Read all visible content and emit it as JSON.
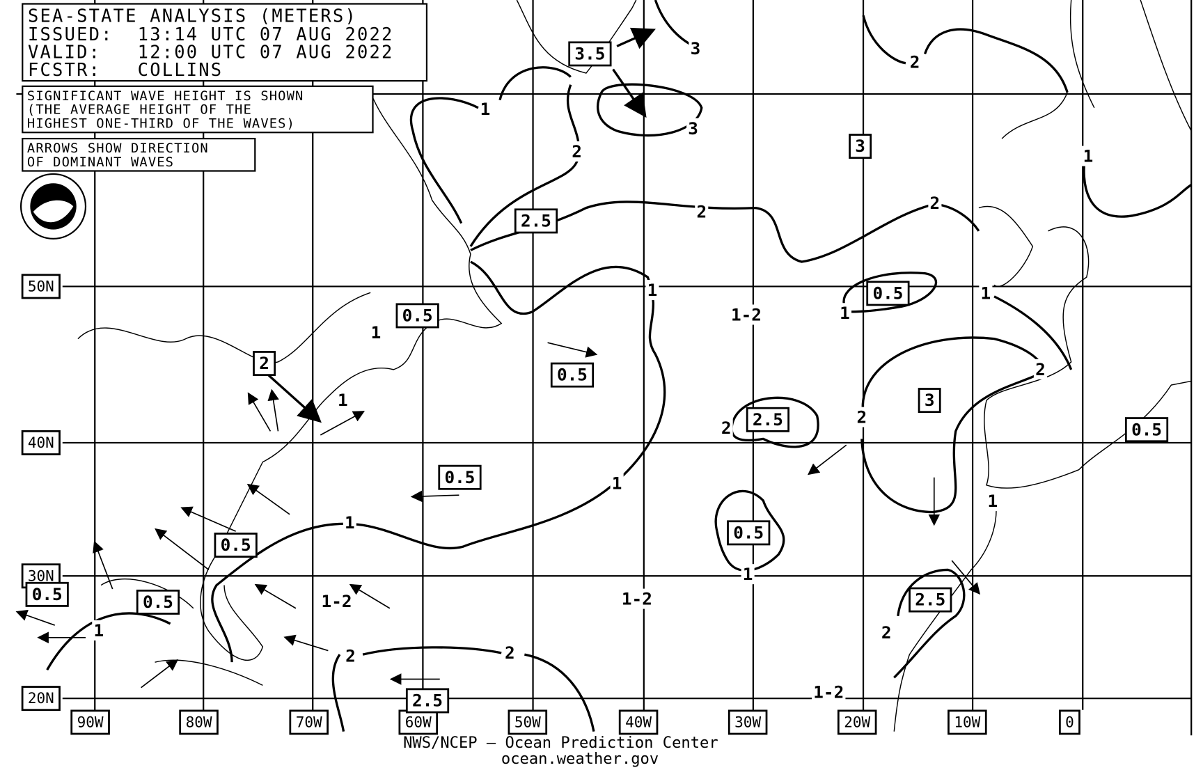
{
  "header": {
    "title": "SEA-STATE ANALYSIS (METERS)",
    "issued": "ISSUED:  13:14 UTC 07 AUG 2022",
    "valid": "VALID:   12:00 UTC 07 AUG 2022",
    "forecaster": "FCSTR:   COLLINS"
  },
  "notes": [
    {
      "lines": [
        "SIGNIFICANT WAVE HEIGHT IS SHOWN",
        "(THE AVERAGE HEIGHT OF THE",
        "HIGHEST ONE-THIRD OF THE WAVES)"
      ]
    },
    {
      "lines": [
        "ARROWS SHOW DIRECTION",
        "OF DOMINANT WAVES"
      ]
    }
  ],
  "latitude_labels": [
    "50N",
    "40N",
    "30N",
    "20N"
  ],
  "longitude_labels": [
    "90W",
    "80W",
    "70W",
    "60W",
    "50W",
    "40W",
    "30W",
    "20W",
    "10W",
    "0"
  ],
  "boxed_labels": [
    "3.5",
    "2.5",
    "3",
    "0.5",
    "0.5",
    "2",
    "0.5",
    "3",
    "2.5",
    "0.5",
    "0.5",
    "0.5",
    "0.5",
    "0.5",
    "0.5",
    "2.5",
    "2.5"
  ],
  "contour_labels": [
    "3",
    "2",
    "1",
    "3",
    "2",
    "1",
    "2",
    "2",
    "1",
    "1-2",
    "1",
    "1",
    "1",
    "2",
    "1",
    "2",
    "2",
    "1",
    "1",
    "1",
    "1",
    "1-2",
    "1-2",
    "1",
    "2",
    "2",
    "2",
    "1-2"
  ],
  "footer": {
    "agency": "NWS/NCEP — Ocean Prediction Center",
    "website": "ocean.weather.gov"
  }
}
